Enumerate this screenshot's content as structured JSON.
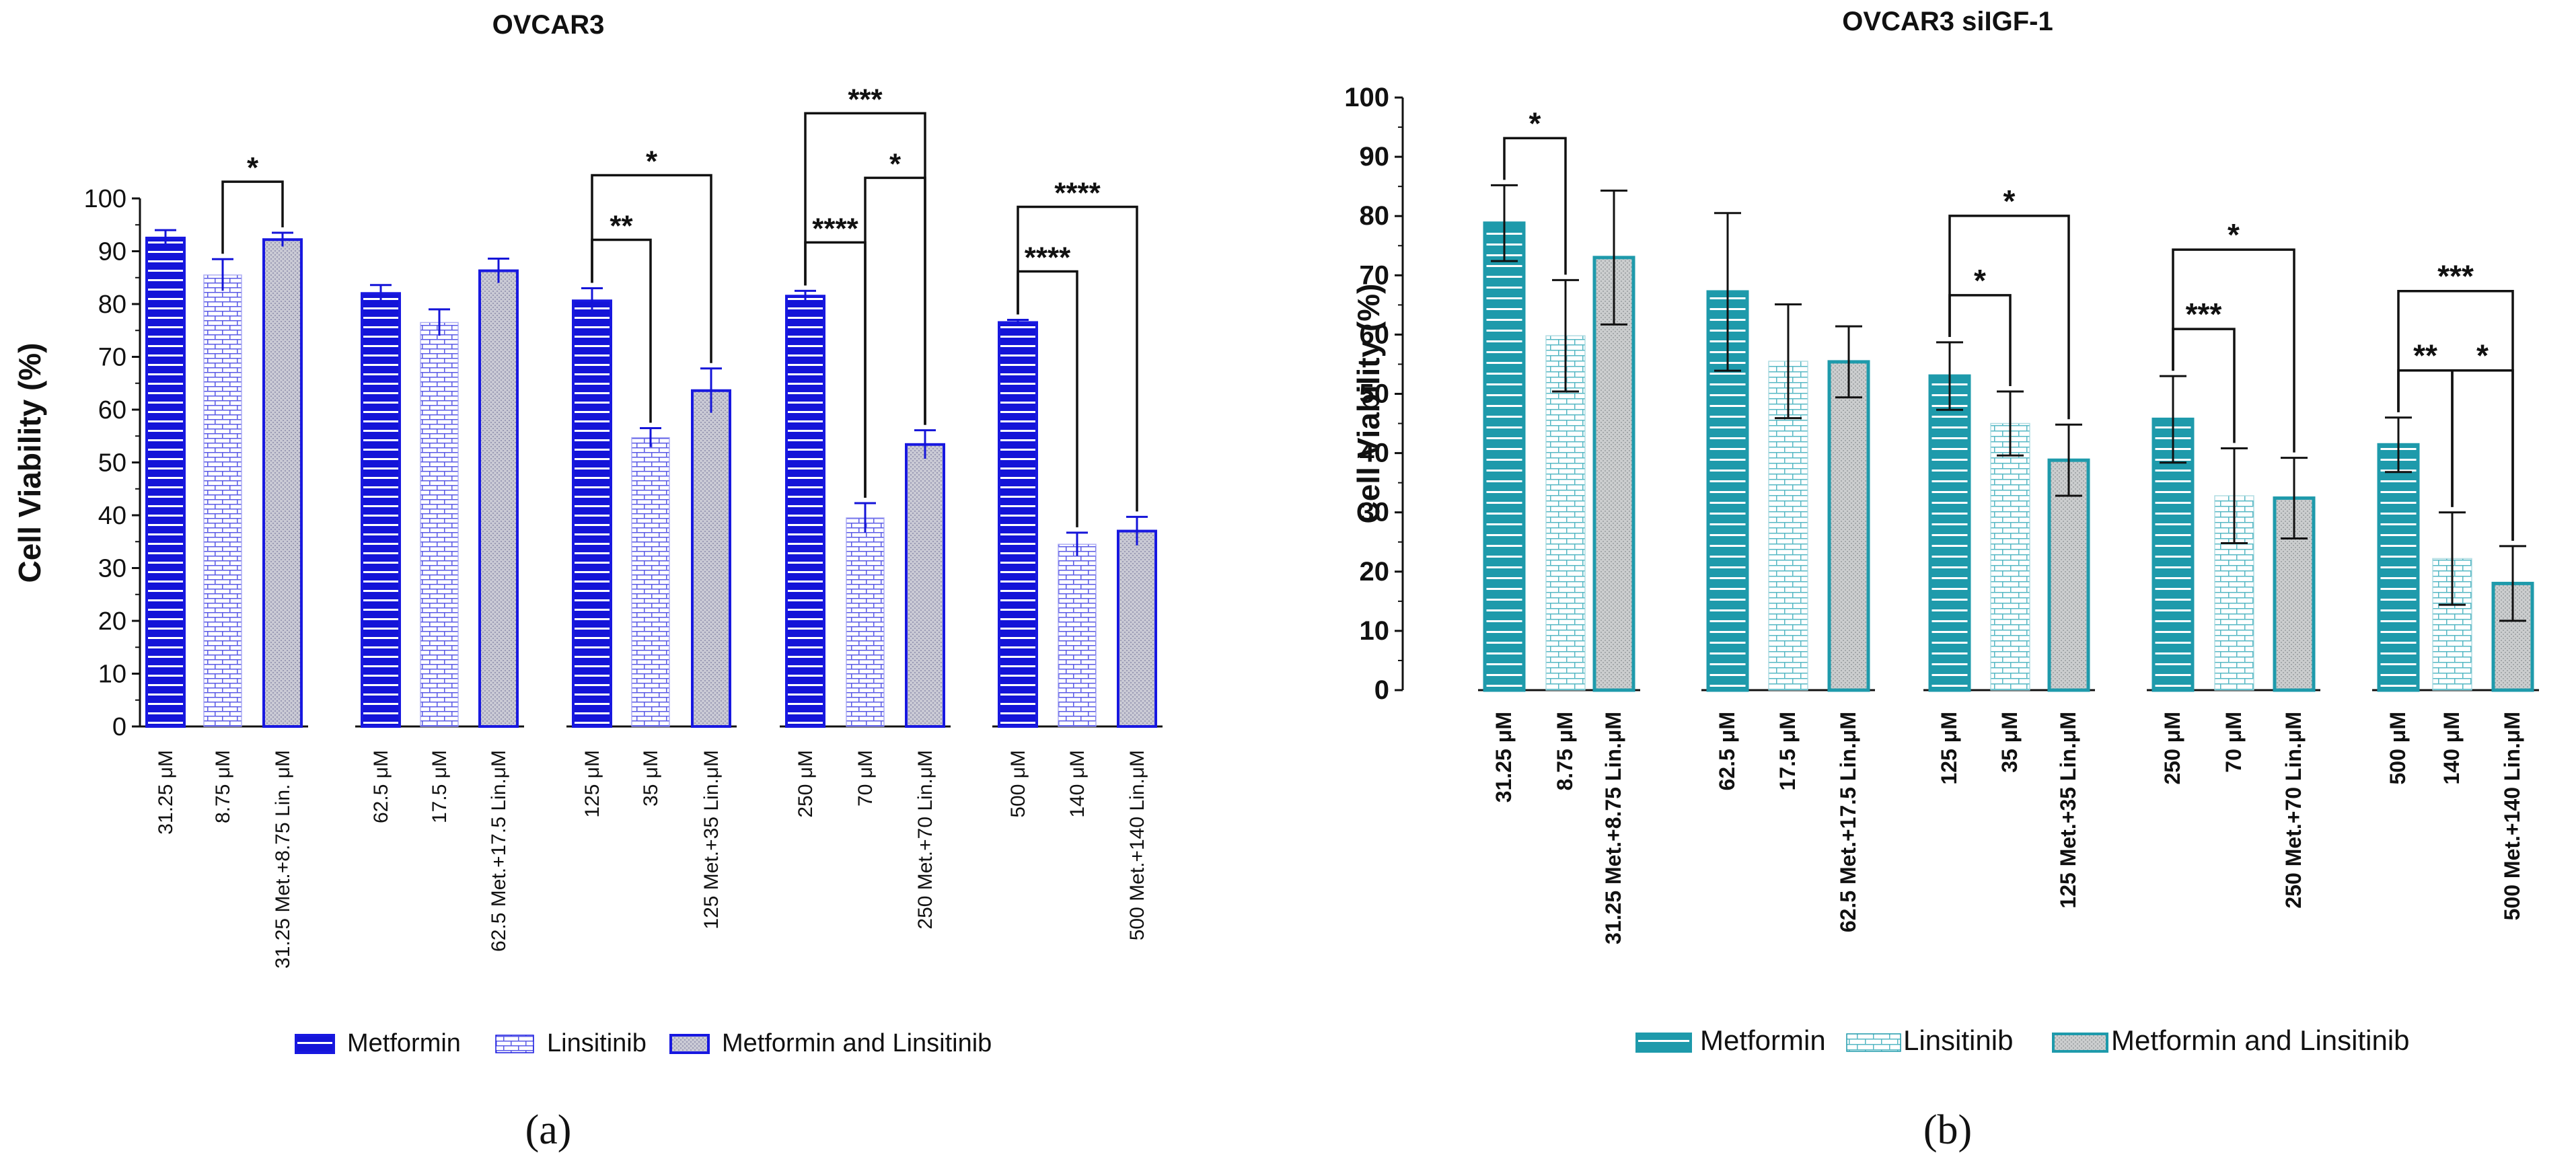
{
  "chart_data": [
    {
      "type": "bar",
      "panel_label": "(a)",
      "title": "OVCAR3",
      "ylabel": "Cell Viability (%)",
      "xlabel": "",
      "ylim": [
        0,
        100
      ],
      "yticks": [
        0,
        10,
        20,
        30,
        40,
        50,
        60,
        70,
        80,
        90,
        100
      ],
      "ytick_labels": [
        "0",
        "10",
        "20",
        "30",
        "40",
        "50",
        "60",
        "70",
        "80",
        "90",
        "100"
      ],
      "legend": [
        "Metformin",
        "Linsitinib",
        "Metformin and Linsitinib"
      ],
      "colors": {
        "bar": "#1818e0",
        "bar_fill": "#1414d8",
        "combo_fill": "#c8c8d2",
        "stripe": "#ffffff"
      },
      "groups": [
        {
          "categories": [
            "31.25 μM",
            "8.75 μM",
            "31.25 Met.+8.75 Lin. μM"
          ],
          "values": [
            92.5,
            85.5,
            92.2
          ],
          "errors": [
            1.5,
            3.0,
            1.3
          ]
        },
        {
          "categories": [
            "62.5 μM",
            "17.5 μM",
            "62.5 Met.+17.5 Lin.μM"
          ],
          "values": [
            82.0,
            76.5,
            86.3
          ],
          "errors": [
            1.6,
            2.5,
            2.3
          ]
        },
        {
          "categories": [
            "125 μM",
            "35 μM",
            "125 Met.+35 Lin.μM"
          ],
          "values": [
            80.6,
            54.7,
            63.6
          ],
          "errors": [
            2.4,
            1.8,
            4.2
          ]
        },
        {
          "categories": [
            "250 μM",
            "70 μM",
            "250 Met.+70 Lin.μM"
          ],
          "values": [
            81.5,
            39.5,
            53.4
          ],
          "errors": [
            1.0,
            2.8,
            2.7
          ]
        },
        {
          "categories": [
            "500 μM",
            "140 μM",
            "500 Met.+140 Lin.μM"
          ],
          "values": [
            76.5,
            34.5,
            37.0
          ],
          "errors": [
            0.5,
            2.2,
            2.7
          ]
        }
      ],
      "significance": [
        {
          "group": 0,
          "from": 1,
          "to": 2,
          "label": "*",
          "level": 0
        },
        {
          "group": 2,
          "from": 0,
          "to": 1,
          "label": "**",
          "level": 0
        },
        {
          "group": 2,
          "from": 0,
          "to": 2,
          "label": "*",
          "level": 1
        },
        {
          "group": 3,
          "from": 0,
          "to": 1,
          "label": "****",
          "level": 0
        },
        {
          "group": 3,
          "from": 1,
          "to": 2,
          "label": "*",
          "level": 1
        },
        {
          "group": 3,
          "from": 0,
          "to": 2,
          "label": "***",
          "level": 2
        },
        {
          "group": 4,
          "from": 0,
          "to": 1,
          "label": "****",
          "level": 0
        },
        {
          "group": 4,
          "from": 0,
          "to": 2,
          "label": "****",
          "level": 1
        }
      ]
    },
    {
      "type": "bar",
      "panel_label": "(b)",
      "title": "OVCAR3 siIGF-1",
      "ylabel": "Cell Viability (%)",
      "xlabel": "",
      "ylim": [
        0,
        100
      ],
      "yticks": [
        0,
        10,
        20,
        30,
        40,
        50,
        60,
        70,
        80,
        90,
        100
      ],
      "ytick_labels": [
        "0",
        "10",
        "20",
        "30",
        "40",
        "50",
        "60",
        "70",
        "80",
        "90",
        "100"
      ],
      "legend": [
        "Metformin",
        "Linsitinib",
        "Metformin and Linsitinib"
      ],
      "colors": {
        "bar": "#1e9aab",
        "bar_fill": "#1e9aab",
        "combo_fill": "#c9cbcc",
        "stripe": "#ffffff"
      },
      "groups": [
        {
          "categories": [
            "31.25 μM",
            "8.75 μM",
            "31.25 Met.+8.75 Lin.μM"
          ],
          "values": [
            78.8,
            59.8,
            73.0
          ],
          "errors": [
            6.4,
            9.4,
            11.3
          ]
        },
        {
          "categories": [
            "62.5 μM",
            "17.5 μM",
            "62.5 Met.+17.5 Lin.μM"
          ],
          "values": [
            67.2,
            55.5,
            55.4
          ],
          "errors": [
            13.3,
            9.6,
            6.0
          ]
        },
        {
          "categories": [
            "125 μM",
            "35 μM",
            "125 Met.+35 Lin.μM"
          ],
          "values": [
            53.0,
            45.0,
            38.8
          ],
          "errors": [
            5.7,
            5.4,
            6.0
          ]
        },
        {
          "categories": [
            "250 μM",
            "70 μM",
            "250 Met.+70 Lin.μM"
          ],
          "values": [
            45.7,
            32.8,
            32.4
          ],
          "errors": [
            7.3,
            8.0,
            6.8
          ]
        },
        {
          "categories": [
            "500 μM",
            "140 μM",
            "500 Met.+140 Lin.μM"
          ],
          "values": [
            41.4,
            22.2,
            18.0
          ],
          "errors": [
            4.6,
            7.8,
            6.3
          ]
        }
      ],
      "significance": [
        {
          "group": 0,
          "from": 0,
          "to": 1,
          "label": "*",
          "level": 0
        },
        {
          "group": 2,
          "from": 0,
          "to": 1,
          "label": "*",
          "level": 0
        },
        {
          "group": 2,
          "from": 0,
          "to": 2,
          "label": "*",
          "level": 1
        },
        {
          "group": 3,
          "from": 0,
          "to": 1,
          "label": "***",
          "level": 0
        },
        {
          "group": 3,
          "from": 0,
          "to": 2,
          "label": "*",
          "level": 1
        },
        {
          "group": 4,
          "from": 0,
          "to": 1,
          "label": "**",
          "level": 0
        },
        {
          "group": 4,
          "from": 1,
          "to": 2,
          "label": "*",
          "level": 0
        },
        {
          "group": 4,
          "from": 0,
          "to": 2,
          "label": "***",
          "level": 1
        }
      ]
    }
  ]
}
